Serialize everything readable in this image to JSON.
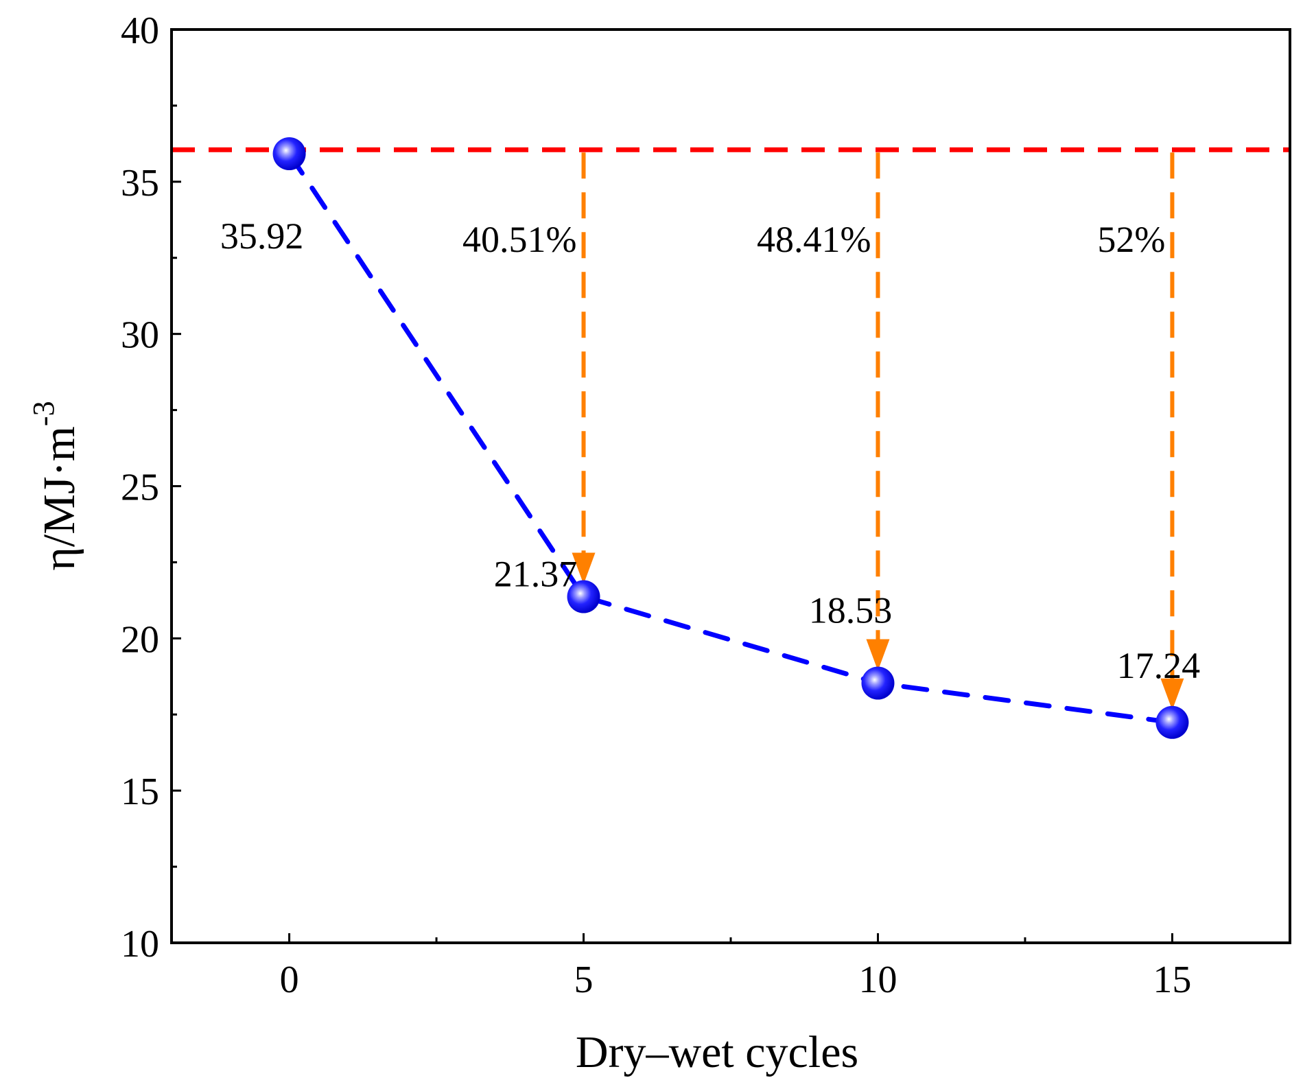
{
  "chart_data": {
    "type": "line",
    "xlabel": "Dry–wet cycles",
    "ylabel": {
      "base": "η/MJ·m",
      "superscript": "-3"
    },
    "xlim": [
      -2,
      17
    ],
    "ylim": [
      10,
      40
    ],
    "x_ticks": [
      0,
      5,
      10,
      15
    ],
    "x_tick_labels": [
      "0",
      "5",
      "10",
      "15"
    ],
    "x_minor_ticks": [
      2.5,
      7.5,
      12.5
    ],
    "y_ticks": [
      10,
      15,
      20,
      25,
      30,
      35,
      40
    ],
    "y_tick_labels": [
      "10",
      "15",
      "20",
      "25",
      "30",
      "35",
      "40"
    ],
    "y_minor_ticks": [
      12.5,
      17.5,
      22.5,
      27.5,
      32.5,
      37.5
    ],
    "grid": false,
    "series": [
      {
        "name": "η",
        "x": [
          0,
          5,
          10,
          15
        ],
        "values": [
          35.92,
          21.37,
          18.53,
          17.24
        ],
        "labels": [
          "35.92",
          "21.37",
          "18.53",
          "17.24"
        ],
        "color": "#0000ff",
        "marker_color": "#1a1aff",
        "line_style": "dashed"
      }
    ],
    "reference_line": {
      "value": 36.05,
      "color": "#ff0000",
      "line_style": "dashed"
    },
    "reduction_arrows": [
      {
        "x": 5,
        "label": "40.51%"
      },
      {
        "x": 10,
        "label": "48.41%"
      },
      {
        "x": 15,
        "label": "52%"
      }
    ],
    "arrow_color": "#ff8000"
  }
}
